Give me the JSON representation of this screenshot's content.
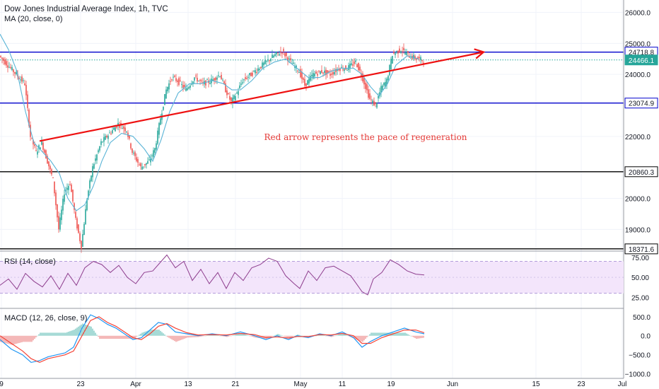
{
  "chart_data": {
    "type": "candlestick",
    "title": "Dow Jones Industrial Average Index, 1h, TVC",
    "indicator_main": "MA (20, close, 0)",
    "annotation": "Red arrow represents the pace of regeneration",
    "price_axis": {
      "ticks": [
        {
          "value": 19000,
          "label": "19000.0"
        },
        {
          "value": 20000,
          "label": "20000.0"
        },
        {
          "value": 22000,
          "label": "22000.0"
        },
        {
          "value": 24000,
          "label": "24000.0"
        },
        {
          "value": 25000,
          "label": "25000.0"
        },
        {
          "value": 26000,
          "label": "26000.0"
        }
      ],
      "range": [
        18300,
        26400
      ]
    },
    "x_axis": {
      "ticks": [
        "9",
        "23",
        "Apr",
        "13",
        "21",
        "May",
        "11",
        "19",
        "Jun",
        "15",
        "23",
        "Jul"
      ]
    },
    "horizontal_levels": [
      {
        "value": 24718.8,
        "label": "24718.8",
        "color": "#0000cc",
        "style": "solid"
      },
      {
        "value": 24466.1,
        "label": "24466.1",
        "color": "#26a69a",
        "style": "dotted"
      },
      {
        "value": 23074.9,
        "label": "23074.9",
        "color": "#0000cc",
        "style": "solid"
      },
      {
        "value": 20860.3,
        "label": "20860.3",
        "color": "#000000",
        "style": "solid"
      },
      {
        "value": 18371.6,
        "label": "18371.6",
        "color": "#000000",
        "style": "solid"
      }
    ],
    "trend_arrow": {
      "from": {
        "bar": 28,
        "value": 21850
      },
      "to": {
        "bar": 342,
        "value": 24720
      },
      "color": "#ee1111"
    },
    "price_path": [
      [
        0,
        24600
      ],
      [
        6,
        24300
      ],
      [
        12,
        24000
      ],
      [
        18,
        23700
      ],
      [
        22,
        22000
      ],
      [
        26,
        21500
      ],
      [
        30,
        21800
      ],
      [
        34,
        21200
      ],
      [
        38,
        20600
      ],
      [
        42,
        19000
      ],
      [
        46,
        20200
      ],
      [
        50,
        20500
      ],
      [
        54,
        19300
      ],
      [
        58,
        18450
      ],
      [
        62,
        20000
      ],
      [
        66,
        21000
      ],
      [
        72,
        21800
      ],
      [
        78,
        22100
      ],
      [
        84,
        22400
      ],
      [
        90,
        22200
      ],
      [
        94,
        21500
      ],
      [
        100,
        21000
      ],
      [
        106,
        21200
      ],
      [
        110,
        21600
      ],
      [
        114,
        22600
      ],
      [
        118,
        23500
      ],
      [
        122,
        23900
      ],
      [
        126,
        23800
      ],
      [
        132,
        23500
      ],
      [
        138,
        23900
      ],
      [
        144,
        23700
      ],
      [
        150,
        23800
      ],
      [
        156,
        24000
      ],
      [
        160,
        23500
      ],
      [
        164,
        23100
      ],
      [
        168,
        23400
      ],
      [
        172,
        23800
      ],
      [
        178,
        24000
      ],
      [
        186,
        24300
      ],
      [
        194,
        24600
      ],
      [
        200,
        24750
      ],
      [
        206,
        24400
      ],
      [
        212,
        24100
      ],
      [
        216,
        23650
      ],
      [
        222,
        24000
      ],
      [
        228,
        24100
      ],
      [
        234,
        24000
      ],
      [
        240,
        24200
      ],
      [
        246,
        24200
      ],
      [
        252,
        24400
      ],
      [
        256,
        24000
      ],
      [
        262,
        23200
      ],
      [
        266,
        23000
      ],
      [
        270,
        23550
      ],
      [
        274,
        23800
      ],
      [
        278,
        24650
      ],
      [
        284,
        24800
      ],
      [
        290,
        24600
      ],
      [
        296,
        24500
      ],
      [
        300,
        24450
      ]
    ],
    "ma_path": [
      [
        0,
        25300
      ],
      [
        6,
        24800
      ],
      [
        12,
        24100
      ],
      [
        18,
        22800
      ],
      [
        24,
        21800
      ],
      [
        30,
        21500
      ],
      [
        36,
        21200
      ],
      [
        42,
        20800
      ],
      [
        48,
        20000
      ],
      [
        54,
        19600
      ],
      [
        60,
        19800
      ],
      [
        66,
        20400
      ],
      [
        72,
        21200
      ],
      [
        78,
        21800
      ],
      [
        86,
        22100
      ],
      [
        94,
        22000
      ],
      [
        102,
        21600
      ],
      [
        108,
        21200
      ],
      [
        114,
        21900
      ],
      [
        120,
        22800
      ],
      [
        126,
        23400
      ],
      [
        134,
        23700
      ],
      [
        142,
        23700
      ],
      [
        150,
        23800
      ],
      [
        158,
        23700
      ],
      [
        164,
        23500
      ],
      [
        170,
        23500
      ],
      [
        178,
        23800
      ],
      [
        186,
        24200
      ],
      [
        194,
        24400
      ],
      [
        202,
        24500
      ],
      [
        210,
        24200
      ],
      [
        218,
        23900
      ],
      [
        226,
        23900
      ],
      [
        234,
        24100
      ],
      [
        242,
        24200
      ],
      [
        250,
        24200
      ],
      [
        256,
        24000
      ],
      [
        262,
        23600
      ],
      [
        268,
        23300
      ],
      [
        274,
        23700
      ],
      [
        280,
        24300
      ],
      [
        288,
        24600
      ],
      [
        296,
        24500
      ]
    ],
    "rsi": {
      "label": "RSI (14, close)",
      "ticks": [
        {
          "value": 25,
          "label": "25.00"
        },
        {
          "value": 50,
          "label": "50.00"
        },
        {
          "value": 75,
          "label": "75.00"
        }
      ],
      "band": [
        30,
        70
      ],
      "path": [
        [
          0,
          40
        ],
        [
          6,
          48
        ],
        [
          12,
          35
        ],
        [
          18,
          55
        ],
        [
          24,
          45
        ],
        [
          30,
          38
        ],
        [
          36,
          52
        ],
        [
          42,
          35
        ],
        [
          48,
          55
        ],
        [
          54,
          40
        ],
        [
          60,
          62
        ],
        [
          66,
          70
        ],
        [
          72,
          66
        ],
        [
          78,
          56
        ],
        [
          84,
          65
        ],
        [
          90,
          50
        ],
        [
          96,
          42
        ],
        [
          102,
          56
        ],
        [
          108,
          58
        ],
        [
          114,
          70
        ],
        [
          118,
          78
        ],
        [
          124,
          62
        ],
        [
          130,
          70
        ],
        [
          136,
          46
        ],
        [
          142,
          60
        ],
        [
          148,
          42
        ],
        [
          154,
          56
        ],
        [
          160,
          36
        ],
        [
          166,
          56
        ],
        [
          172,
          46
        ],
        [
          178,
          62
        ],
        [
          184,
          66
        ],
        [
          190,
          74
        ],
        [
          196,
          70
        ],
        [
          202,
          52
        ],
        [
          208,
          42
        ],
        [
          212,
          36
        ],
        [
          218,
          58
        ],
        [
          224,
          46
        ],
        [
          230,
          62
        ],
        [
          236,
          64
        ],
        [
          242,
          58
        ],
        [
          248,
          52
        ],
        [
          252,
          42
        ],
        [
          256,
          32
        ],
        [
          260,
          28
        ],
        [
          264,
          48
        ],
        [
          270,
          56
        ],
        [
          276,
          72
        ],
        [
          282,
          66
        ],
        [
          288,
          58
        ],
        [
          294,
          54
        ],
        [
          300,
          53
        ]
      ]
    },
    "macd": {
      "label": "MACD (12, 26, close, 9)",
      "ticks": [
        {
          "value": 500,
          "label": "500.0"
        },
        {
          "value": 0,
          "label": "0.0"
        },
        {
          "value": -500,
          "label": "−500.0"
        },
        {
          "value": -1000,
          "label": "−1000.0"
        }
      ],
      "macd_path": [
        [
          0,
          -100
        ],
        [
          8,
          -350
        ],
        [
          16,
          -500
        ],
        [
          22,
          -700
        ],
        [
          28,
          -650
        ],
        [
          34,
          -550
        ],
        [
          40,
          -500
        ],
        [
          46,
          -450
        ],
        [
          52,
          -300
        ],
        [
          58,
          200
        ],
        [
          64,
          550
        ],
        [
          70,
          450
        ],
        [
          76,
          300
        ],
        [
          82,
          200
        ],
        [
          88,
          50
        ],
        [
          94,
          -100
        ],
        [
          100,
          -50
        ],
        [
          106,
          150
        ],
        [
          112,
          350
        ],
        [
          118,
          300
        ],
        [
          124,
          100
        ],
        [
          132,
          50
        ],
        [
          140,
          0
        ],
        [
          150,
          50
        ],
        [
          160,
          0
        ],
        [
          170,
          100
        ],
        [
          180,
          0
        ],
        [
          188,
          -100
        ],
        [
          196,
          0
        ],
        [
          204,
          -100
        ],
        [
          210,
          0
        ],
        [
          218,
          -50
        ],
        [
          226,
          50
        ],
        [
          234,
          0
        ],
        [
          242,
          100
        ],
        [
          250,
          -50
        ],
        [
          256,
          -300
        ],
        [
          262,
          -150
        ],
        [
          270,
          0
        ],
        [
          278,
          100
        ],
        [
          286,
          200
        ],
        [
          294,
          100
        ],
        [
          300,
          50
        ]
      ],
      "signal_path": [
        [
          0,
          0
        ],
        [
          8,
          -200
        ],
        [
          16,
          -400
        ],
        [
          22,
          -600
        ],
        [
          28,
          -700
        ],
        [
          34,
          -600
        ],
        [
          40,
          -550
        ],
        [
          46,
          -500
        ],
        [
          52,
          -400
        ],
        [
          58,
          0
        ],
        [
          64,
          400
        ],
        [
          70,
          500
        ],
        [
          76,
          350
        ],
        [
          82,
          250
        ],
        [
          88,
          100
        ],
        [
          94,
          -50
        ],
        [
          100,
          -100
        ],
        [
          106,
          50
        ],
        [
          112,
          250
        ],
        [
          118,
          320
        ],
        [
          124,
          200
        ],
        [
          132,
          80
        ],
        [
          140,
          20
        ],
        [
          150,
          30
        ],
        [
          160,
          20
        ],
        [
          170,
          60
        ],
        [
          180,
          30
        ],
        [
          188,
          -50
        ],
        [
          196,
          -30
        ],
        [
          204,
          -60
        ],
        [
          210,
          -20
        ],
        [
          218,
          -20
        ],
        [
          226,
          30
        ],
        [
          234,
          20
        ],
        [
          242,
          60
        ],
        [
          250,
          0
        ],
        [
          256,
          -200
        ],
        [
          262,
          -200
        ],
        [
          270,
          -50
        ],
        [
          278,
          50
        ],
        [
          286,
          150
        ],
        [
          294,
          150
        ],
        [
          300,
          80
        ]
      ]
    }
  }
}
